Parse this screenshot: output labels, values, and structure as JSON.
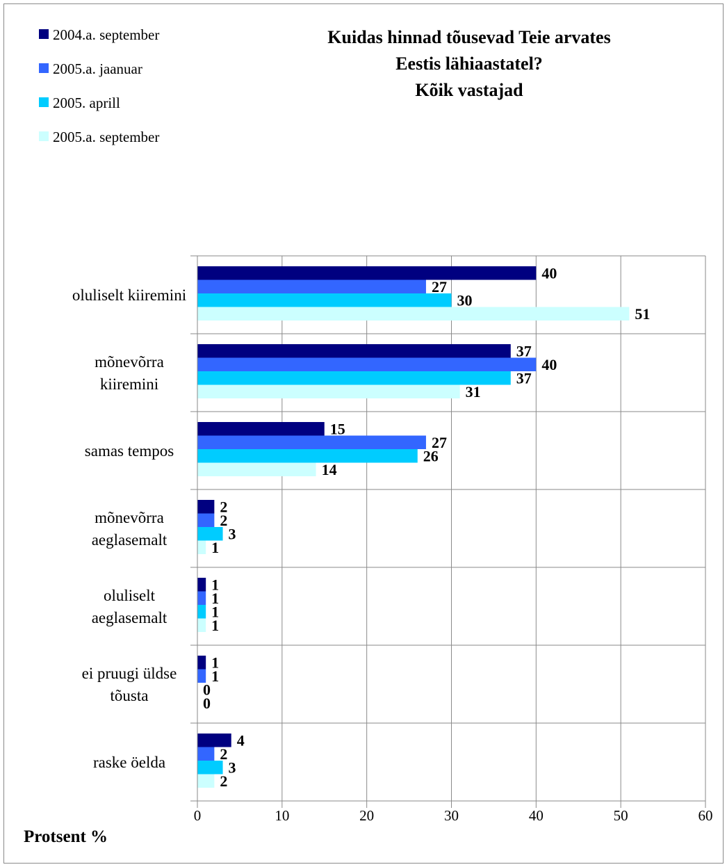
{
  "chart_data": {
    "type": "bar",
    "orientation": "horizontal",
    "title": [
      "Kuidas hinnad tõusevad Teie arvates",
      "Eestis lähiaastatel?",
      "Kõik vastajad"
    ],
    "xlabel": "Protsent %",
    "ylabel": "",
    "xlim": [
      0,
      60
    ],
    "x_ticks": [
      0,
      10,
      20,
      30,
      40,
      50,
      60
    ],
    "grid": true,
    "legend_position": "top-left",
    "categories": [
      [
        "oluliselt kiiremini"
      ],
      [
        "mõnevõrra",
        "kiiremini"
      ],
      [
        "samas tempos"
      ],
      [
        "mõnevõrra",
        "aeglasemalt"
      ],
      [
        "oluliselt",
        "aeglasemalt"
      ],
      [
        "ei pruugi üldse",
        "tõusta"
      ],
      [
        "raske öelda"
      ]
    ],
    "series": [
      {
        "name": "2004.a. september",
        "color": "#000080",
        "values": [
          40,
          37,
          15,
          2,
          1,
          1,
          4
        ]
      },
      {
        "name": "2005.a. jaanuar",
        "color": "#3366FF",
        "values": [
          27,
          40,
          27,
          2,
          1,
          1,
          2
        ]
      },
      {
        "name": "2005. aprill",
        "color": "#00CCFF",
        "values": [
          30,
          37,
          26,
          3,
          1,
          0,
          3
        ]
      },
      {
        "name": "2005.a. september",
        "color": "#CCFFFF",
        "values": [
          51,
          31,
          14,
          1,
          1,
          0,
          2
        ]
      }
    ]
  }
}
